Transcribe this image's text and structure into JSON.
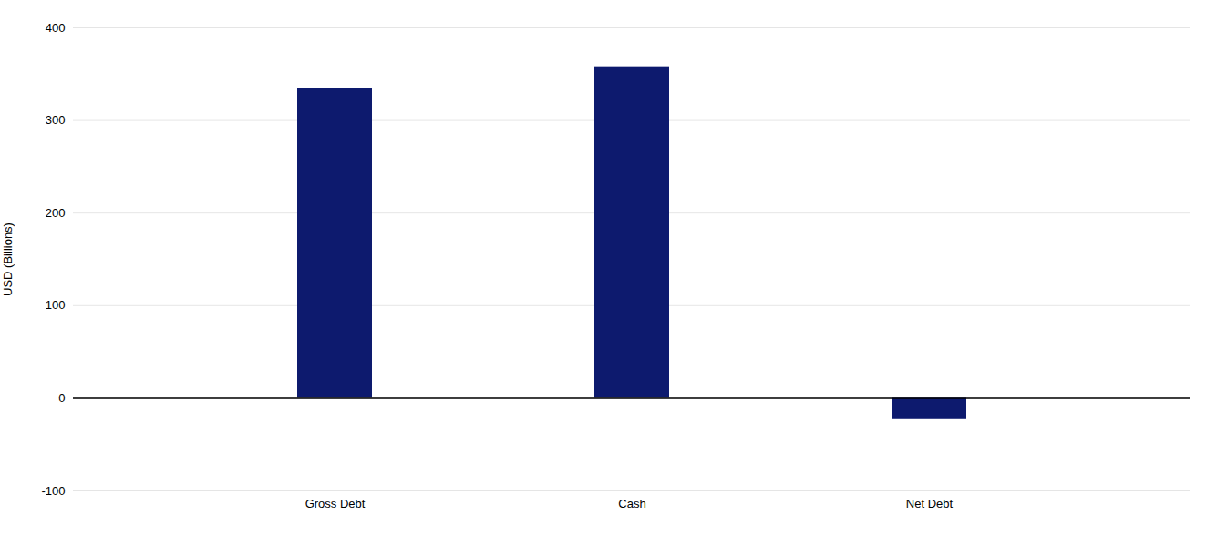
{
  "chart_data": {
    "type": "bar",
    "categories": [
      "Gross Debt",
      "Cash",
      "Net Debt"
    ],
    "values": [
      335,
      358,
      -23
    ],
    "color": "#0d1a6e",
    "ylabel": "USD (Billions)",
    "ylim": [
      -100,
      400
    ],
    "yticks": [
      -100,
      0,
      100,
      200,
      300,
      400
    ],
    "grid": true
  }
}
